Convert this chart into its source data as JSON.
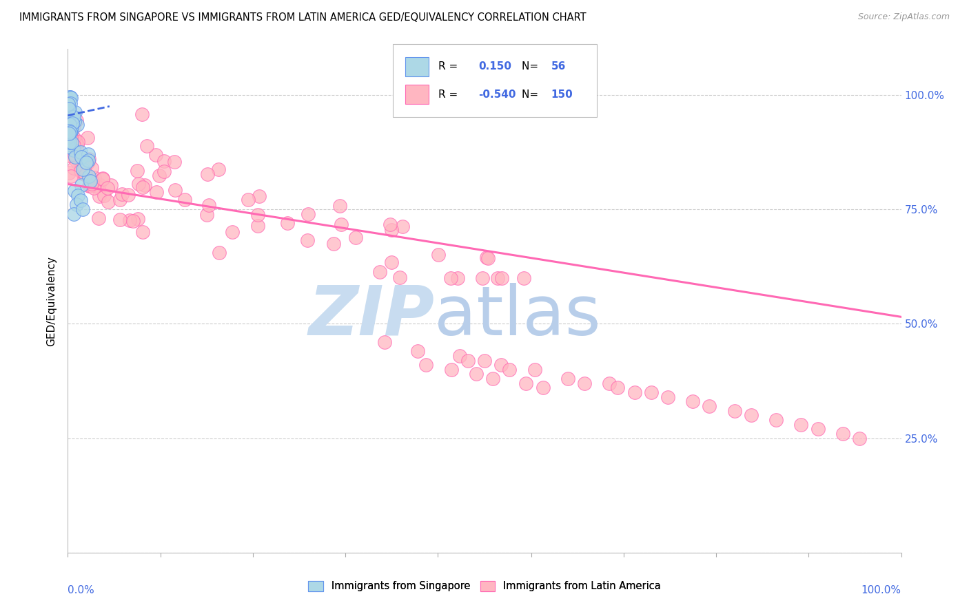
{
  "title": "IMMIGRANTS FROM SINGAPORE VS IMMIGRANTS FROM LATIN AMERICA GED/EQUIVALENCY CORRELATION CHART",
  "source": "Source: ZipAtlas.com",
  "ylabel": "GED/Equivalency",
  "legend_blue_r": "0.150",
  "legend_blue_n": "56",
  "legend_pink_r": "-0.540",
  "legend_pink_n": "150",
  "blue_fill": "#ADD8E6",
  "blue_edge": "#6495ED",
  "pink_fill": "#FFB6C1",
  "pink_edge": "#FF69B4",
  "blue_line_color": "#4169E1",
  "pink_line_color": "#FF69B4",
  "watermark_zip": "ZIP",
  "watermark_atlas": "atlas",
  "watermark_color_zip": "#C8DCF0",
  "watermark_color_atlas": "#B0D4EC",
  "background_color": "#FFFFFF",
  "grid_color": "#CCCCCC",
  "right_tick_color": "#4169E1",
  "xlim": [
    0,
    1.0
  ],
  "ylim": [
    0,
    1.1
  ],
  "pink_trend_x0": 0.0,
  "pink_trend_y0": 0.805,
  "pink_trend_x1": 1.0,
  "pink_trend_y1": 0.515,
  "blue_trend_x0": 0.0,
  "blue_trend_y0": 0.955,
  "blue_trend_x1": 0.05,
  "blue_trend_y1": 0.975
}
